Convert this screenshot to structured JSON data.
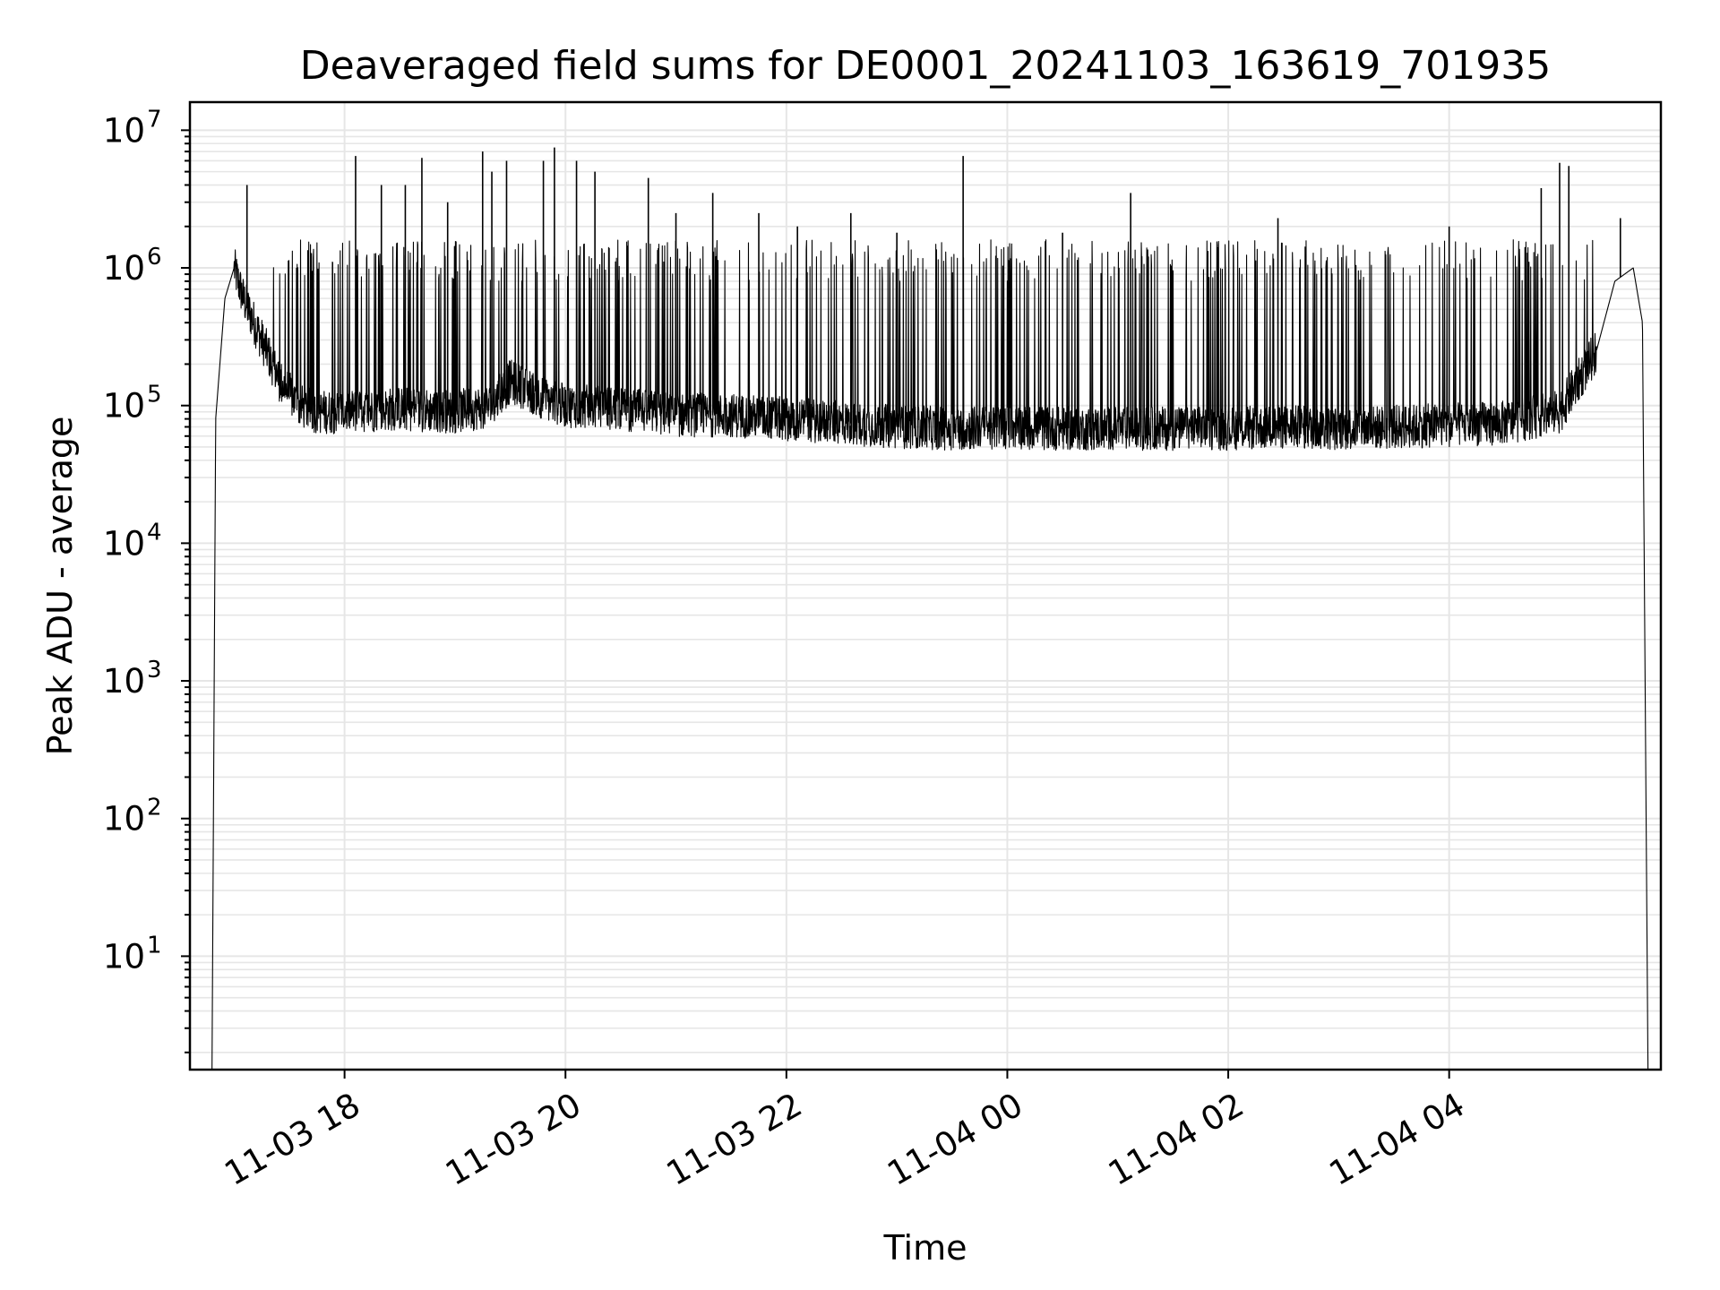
{
  "chart_data": {
    "type": "line",
    "title": "Deaveraged field sums for DE0001_20241103_163619_701935",
    "xlabel": "Time",
    "ylabel": "Peak ADU - average",
    "x_scale": "time",
    "y_scale": "log",
    "xlim": [
      "2024-11-03 16:36",
      "2024-11-04 05:55"
    ],
    "ylim": [
      1.5,
      16000000
    ],
    "x_ticks": [
      "2024-11-03 18:00",
      "2024-11-03 20:00",
      "2024-11-03 22:00",
      "2024-11-04 00:00",
      "2024-11-04 02:00",
      "2024-11-04 04:00"
    ],
    "x_tick_labels": [
      "11-03 18",
      "11-03 20",
      "11-03 22",
      "11-04 00",
      "11-04 02",
      "11-04 04"
    ],
    "y_ticks": [
      10,
      100,
      1000,
      10000,
      100000,
      1000000,
      10000000
    ],
    "y_tick_labels": [
      {
        "base": "10",
        "exp": "1"
      },
      {
        "base": "10",
        "exp": "2"
      },
      {
        "base": "10",
        "exp": "3"
      },
      {
        "base": "10",
        "exp": "4"
      },
      {
        "base": "10",
        "exp": "5"
      },
      {
        "base": "10",
        "exp": "6"
      },
      {
        "base": "10",
        "exp": "7"
      }
    ],
    "grid": true,
    "line_color": "#000000",
    "grid_color": "#e6e6e6",
    "series": [
      {
        "x": [
          "2024-11-03 16:48",
          "2024-11-03 16:50",
          "2024-11-03 16:55",
          "2024-11-03 17:00",
          "2024-11-03 17:05",
          "2024-11-03 17:15",
          "2024-11-03 17:25",
          "2024-11-03 17:35",
          "2024-11-03 17:45",
          "2024-11-03 18:00",
          "2024-11-03 18:30",
          "2024-11-03 19:00",
          "2024-11-03 19:20",
          "2024-11-03 19:30",
          "2024-11-03 19:50",
          "2024-11-03 20:00",
          "2024-11-03 20:30",
          "2024-11-03 21:00",
          "2024-11-03 21:30",
          "2024-11-03 22:00",
          "2024-11-03 22:30",
          "2024-11-03 23:00",
          "2024-11-03 23:30",
          "2024-11-04 00:00",
          "2024-11-04 00:30",
          "2024-11-04 01:00",
          "2024-11-04 01:30",
          "2024-11-04 02:00",
          "2024-11-04 02:30",
          "2024-11-04 03:00",
          "2024-11-04 03:30",
          "2024-11-04 04:00",
          "2024-11-04 04:30",
          "2024-11-04 05:00",
          "2024-11-04 05:20",
          "2024-11-04 05:30",
          "2024-11-04 05:40",
          "2024-11-04 05:45",
          "2024-11-04 05:48"
        ],
        "y": [
          1.5,
          80000,
          600000,
          1000000,
          600000,
          300000,
          150000,
          100000,
          90000,
          90000,
          95000,
          90000,
          100000,
          150000,
          110000,
          100000,
          95000,
          85000,
          85000,
          80000,
          75000,
          70000,
          68000,
          70000,
          68000,
          68000,
          68000,
          68000,
          70000,
          68000,
          70000,
          72000,
          75000,
          90000,
          250000,
          800000,
          1000000,
          400000,
          1.5
        ]
      }
    ],
    "spikes": {
      "x": [
        "2024-11-03 17:07",
        "2024-11-03 18:06",
        "2024-11-03 18:20",
        "2024-11-03 18:33",
        "2024-11-03 18:42",
        "2024-11-03 18:56",
        "2024-11-03 19:15",
        "2024-11-03 19:20",
        "2024-11-03 19:28",
        "2024-11-03 19:48",
        "2024-11-03 19:54",
        "2024-11-03 20:06",
        "2024-11-03 20:16",
        "2024-11-03 20:45",
        "2024-11-03 21:00",
        "2024-11-03 21:20",
        "2024-11-03 21:45",
        "2024-11-03 22:06",
        "2024-11-03 22:35",
        "2024-11-03 23:00",
        "2024-11-03 23:36",
        "2024-11-04 00:30",
        "2024-11-04 01:07",
        "2024-11-04 02:27",
        "2024-11-04 04:00",
        "2024-11-04 04:50",
        "2024-11-04 05:00",
        "2024-11-04 05:05",
        "2024-11-04 05:33"
      ],
      "y": [
        4000000,
        6500000,
        4000000,
        4000000,
        6300000,
        3000000,
        7000000,
        5000000,
        6000000,
        6000000,
        7500000,
        6000000,
        5000000,
        4500000,
        2500000,
        3500000,
        2500000,
        2000000,
        2500000,
        1800000,
        6500000,
        1800000,
        3500000,
        2300000,
        2000000,
        3800000,
        5800000,
        5500000,
        2300000
      ]
    }
  }
}
